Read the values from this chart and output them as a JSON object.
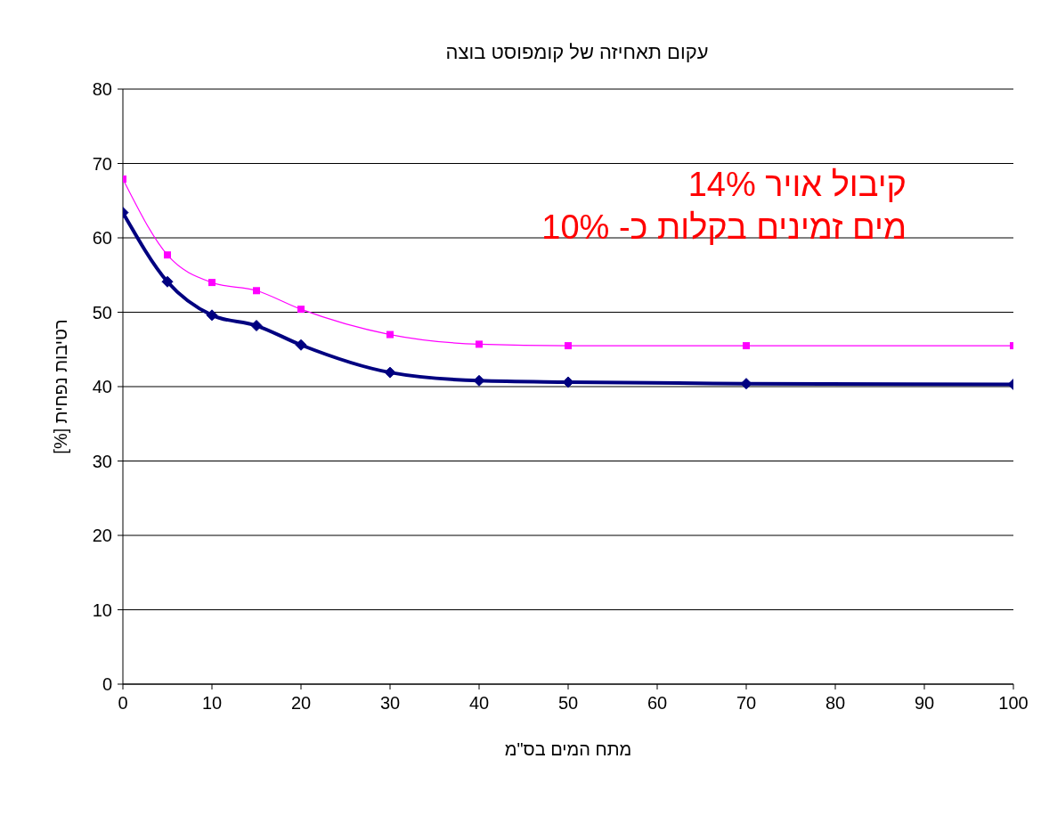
{
  "chart_data": {
    "type": "line",
    "title": "עקום תאחיזה של קומפוסט בוצה",
    "xlabel": "מתח המים בס\"מ",
    "ylabel": "רטיבות נפחית [%]",
    "annotations": [
      "קיבול אויר 14%",
      "מים זמינים בקלות כ- 10%"
    ],
    "x": [
      0,
      5,
      10,
      15,
      20,
      30,
      40,
      50,
      70,
      100
    ],
    "series": [
      {
        "color": "#000080",
        "marker": "diamond",
        "values": [
          63.4,
          54.1,
          49.6,
          48.2,
          45.6,
          41.9,
          40.8,
          40.6,
          40.4,
          40.3
        ]
      },
      {
        "color": "#ff00ff",
        "marker": "square",
        "values": [
          67.9,
          57.7,
          54.0,
          52.9,
          50.4,
          47.0,
          45.7,
          45.5,
          45.5,
          45.5
        ]
      }
    ],
    "xlim": [
      0,
      100
    ],
    "xticks": [
      0,
      10,
      20,
      30,
      40,
      50,
      60,
      70,
      80,
      90,
      100
    ],
    "ylim": [
      0,
      80
    ],
    "yticks": [
      0,
      10,
      20,
      30,
      40,
      50,
      60,
      70,
      80
    ],
    "grid": "y"
  }
}
